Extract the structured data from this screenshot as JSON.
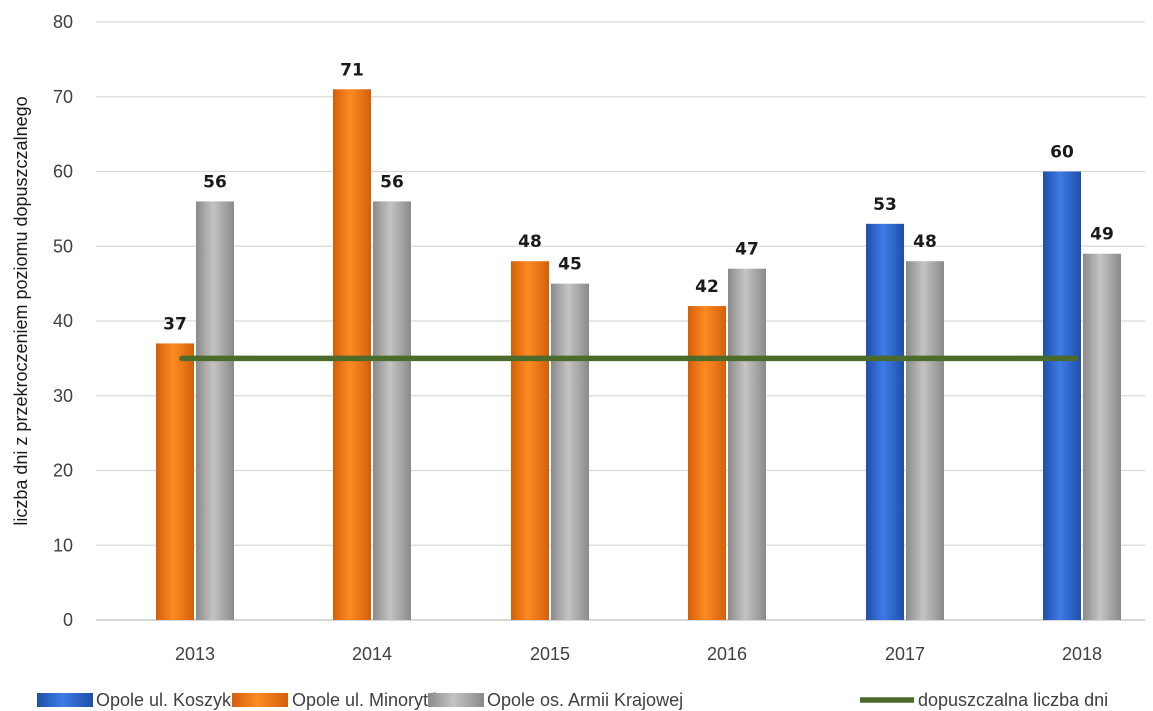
{
  "chart_data": {
    "type": "bar",
    "categories": [
      "2013",
      "2014",
      "2015",
      "2016",
      "2017",
      "2018"
    ],
    "ylabel": "liczba dni z przekroczeniem poziomu dopuszczalnego",
    "ylim": [
      0,
      80
    ],
    "yticks": [
      0,
      10,
      20,
      30,
      40,
      50,
      60,
      70,
      80
    ],
    "grid": true,
    "legend_position": "bottom",
    "series": [
      {
        "name": "Opole ul. Koszyka",
        "color": "#2e67d0",
        "values": [
          null,
          null,
          null,
          null,
          53,
          60
        ]
      },
      {
        "name": "Opole ul. Minorytów",
        "color": "#f07a12",
        "values": [
          37,
          71,
          48,
          42,
          null,
          null
        ]
      },
      {
        "name": "Opole os. Armii Krajowej",
        "color": "#a6a6a6",
        "values": [
          56,
          56,
          45,
          47,
          48,
          49
        ]
      }
    ],
    "reference_line": {
      "name": "dopuszczalna liczba dni",
      "color": "#4a6b2a",
      "value": 35
    }
  }
}
